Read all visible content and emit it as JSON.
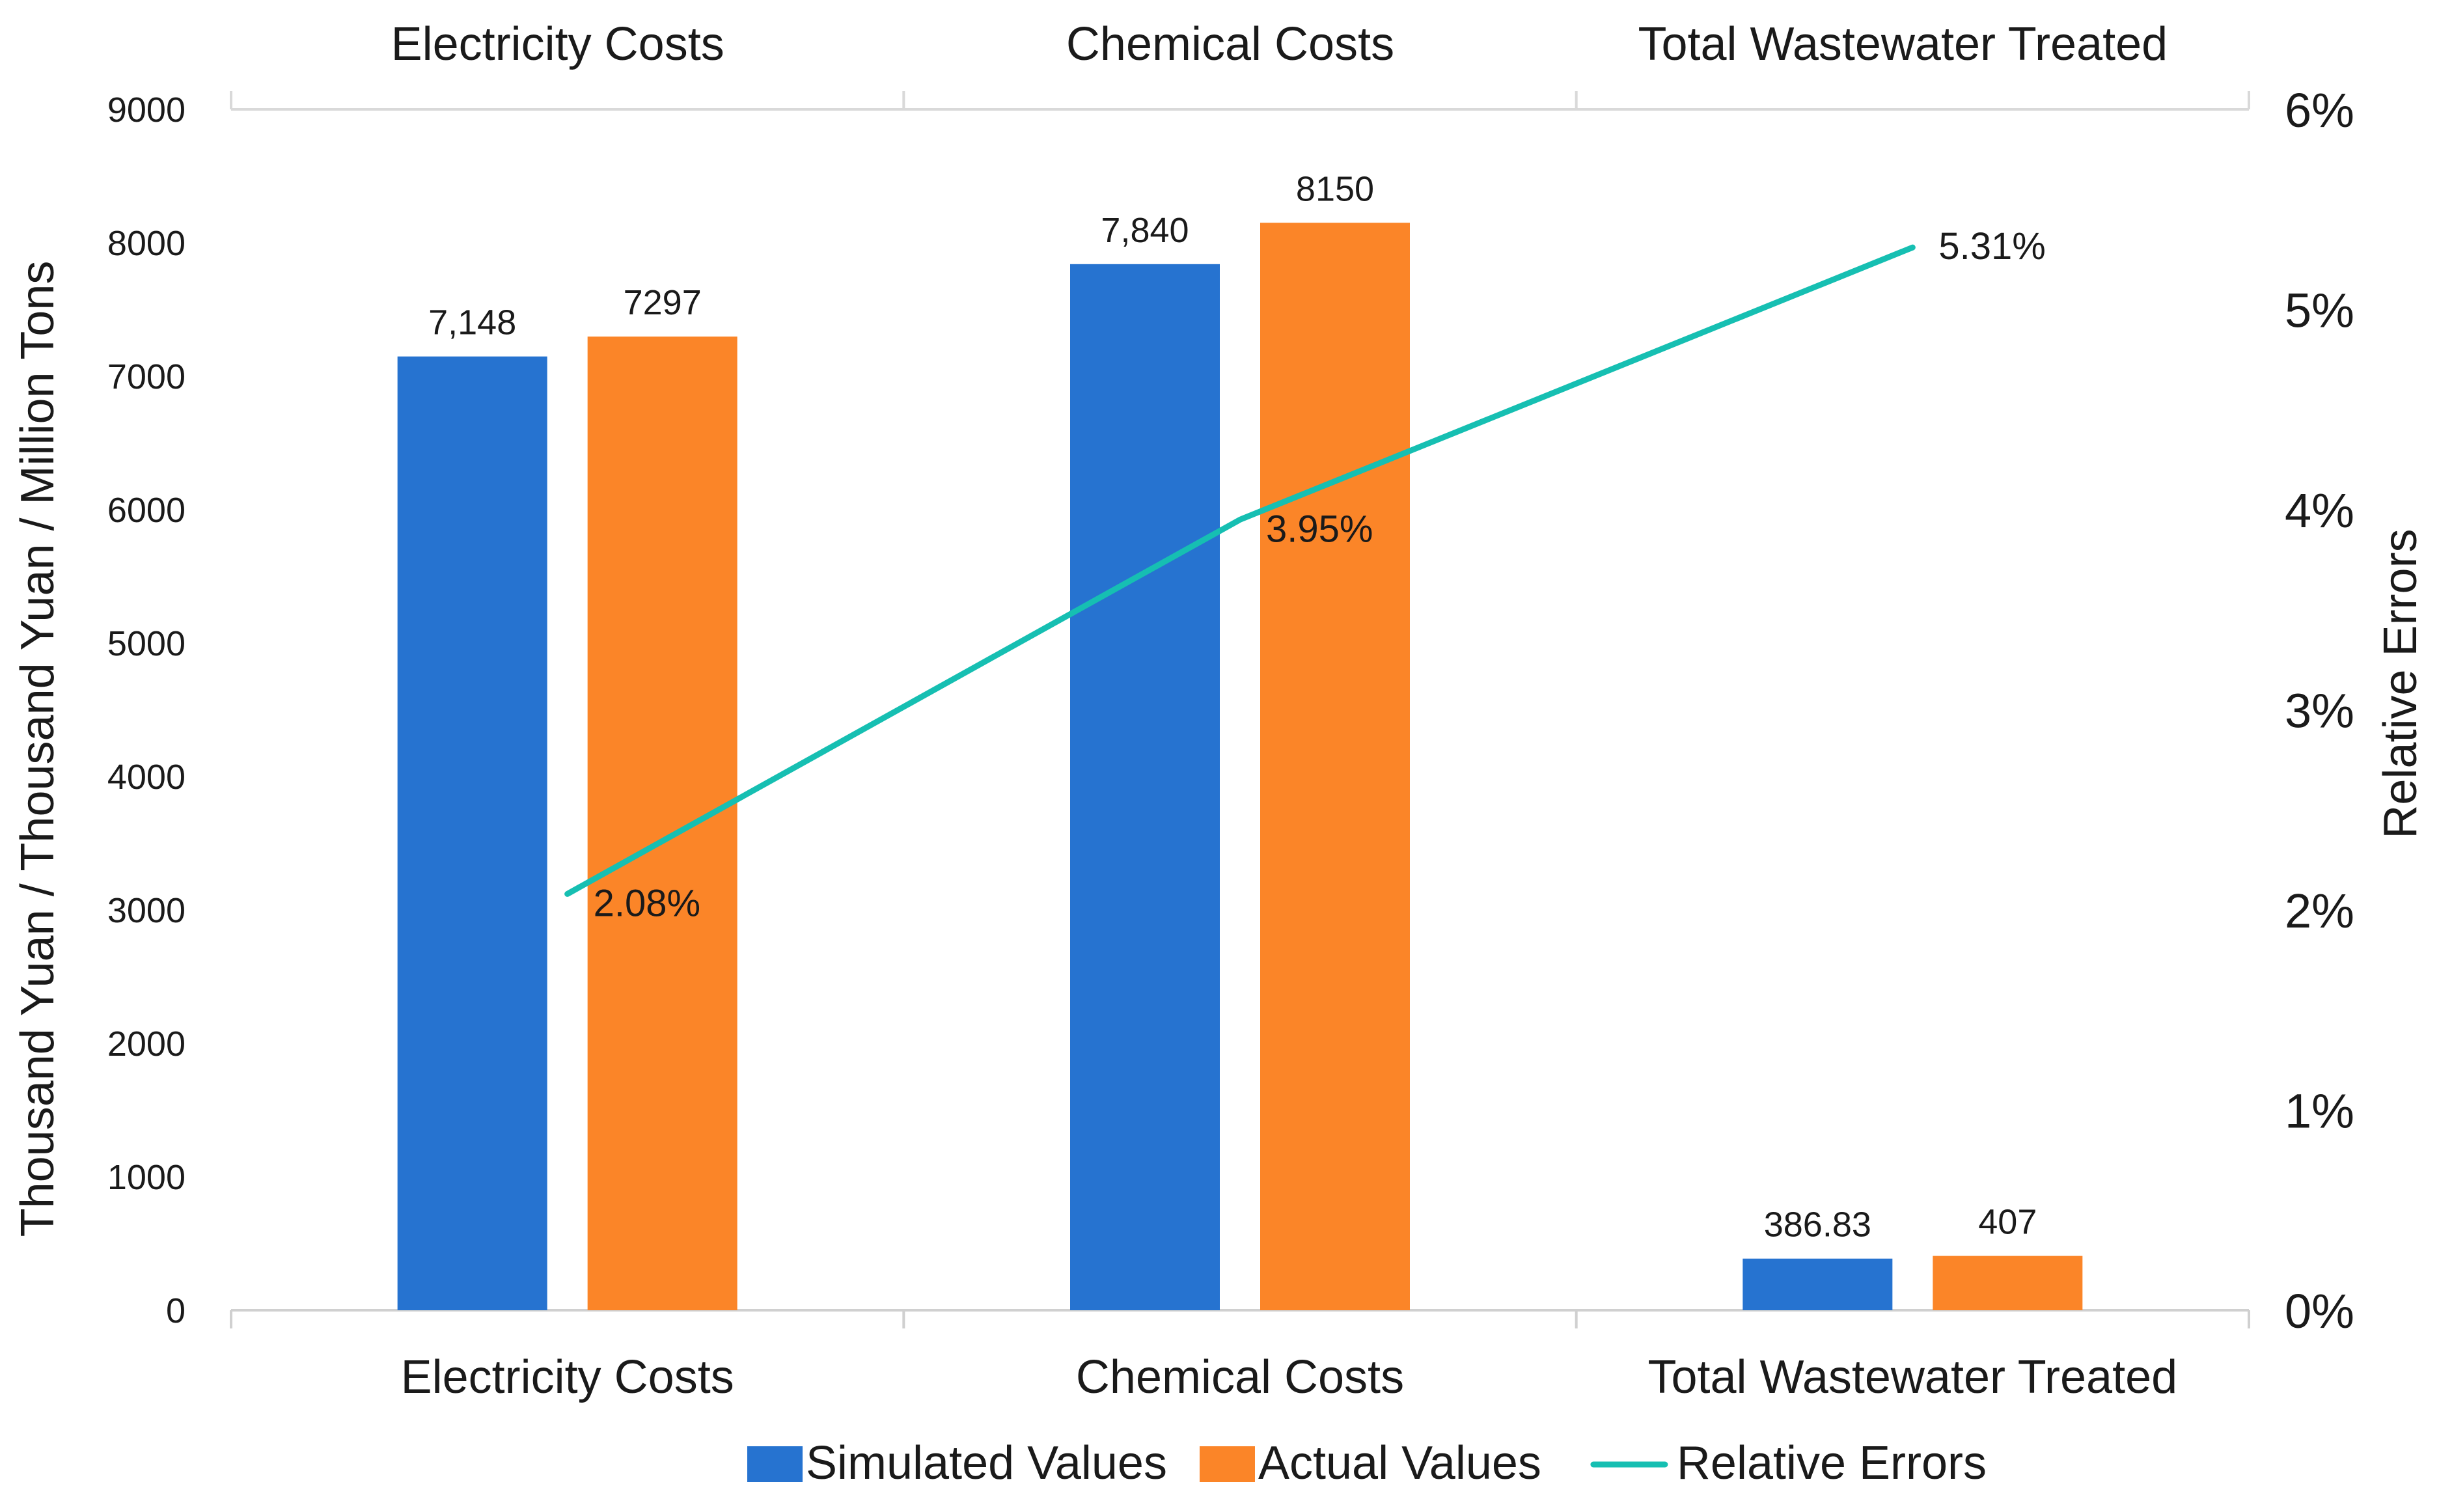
{
  "chart_data": {
    "type": "bar",
    "title": "",
    "categories": [
      "Electricity Costs",
      "Chemical Costs",
      "Total Wastewater Treated"
    ],
    "series": [
      {
        "name": "Simulated Values",
        "values": [
          7148,
          7840,
          386.83
        ],
        "labels": [
          "7,148",
          "7,840",
          "386.83"
        ],
        "color": "#2673d0"
      },
      {
        "name": "Actual Values",
        "values": [
          7297,
          8150,
          407
        ],
        "labels": [
          "7297",
          "8150",
          "407"
        ],
        "color": "#fb8528"
      }
    ],
    "line_series": {
      "name": "Relative Errors",
      "values": [
        2.08,
        3.95,
        5.31
      ],
      "labels": [
        "2.08%",
        "3.95%",
        "5.31%"
      ],
      "color": "#16bfb2",
      "axis": "right"
    },
    "ylabel": "Thousand Yuan / Thousand Yuan / Million Tons",
    "ylim": [
      0,
      9000
    ],
    "yticks": [
      "0",
      "1000",
      "2000",
      "3000",
      "4000",
      "5000",
      "6000",
      "7000",
      "8000",
      "9000"
    ],
    "y2label": "Relative Errors",
    "y2lim": [
      0,
      6
    ],
    "y2ticks": [
      "0%",
      "1%",
      "2%",
      "3%",
      "4%",
      "5%",
      "6%"
    ],
    "top_category_labels": [
      "Electricity Costs",
      "Chemical Costs",
      "Total Wastewater Treated"
    ],
    "legend": [
      "Simulated Values",
      "Actual Values",
      "Relative Errors"
    ],
    "legend_position": "bottom",
    "grid": false
  }
}
